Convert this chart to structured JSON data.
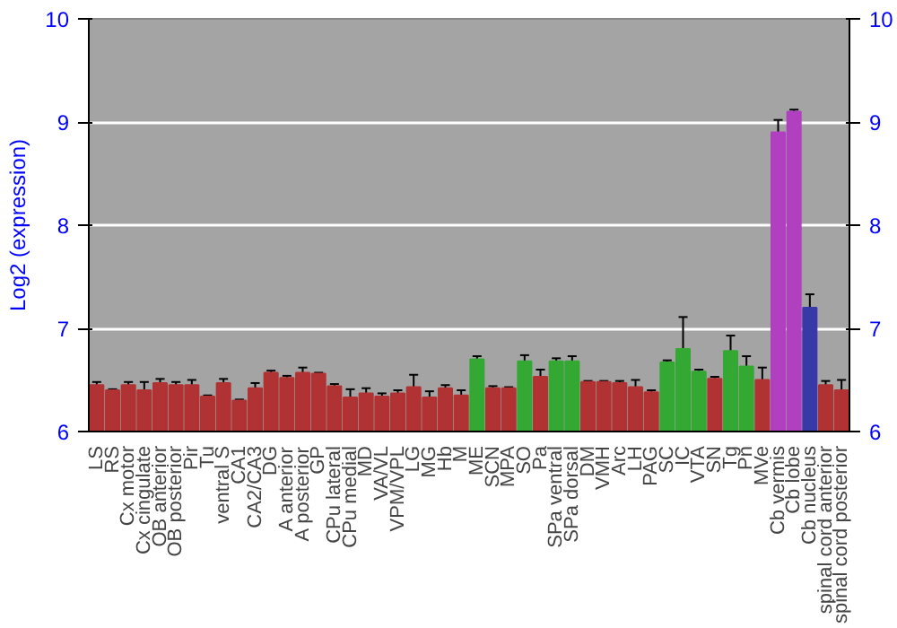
{
  "chart_data": {
    "type": "bar",
    "ylabel": "Log2 (expression)",
    "categories": [
      "LS",
      "RS",
      "Cx motor",
      "Cx cingulate",
      "OB anterior",
      "OB posterior",
      "Pir",
      "Tu",
      "ventral S",
      "CA1",
      "CA2/CA3",
      "DG",
      "A anterior",
      "A posterior",
      "GP",
      "CPu lateral",
      "CPu medial",
      "MD",
      "VA/VL",
      "VPM/VPL",
      "LG",
      "MG",
      "Hb",
      "M",
      "ME",
      "SCN",
      "MPA",
      "SO",
      "Pa",
      "SPa ventral",
      "SPa dorsal",
      "DM",
      "VMH",
      "Arc",
      "LH",
      "PAG",
      "SC",
      "IC",
      "VTA",
      "SN",
      "Tg",
      "Pn",
      "MVe",
      "Cb vermis",
      "Cb lobe",
      "Cb nucleus",
      "spinal cord anterior",
      "spinal cord posterior"
    ],
    "values": [
      6.45,
      6.4,
      6.45,
      6.4,
      6.47,
      6.45,
      6.45,
      6.34,
      6.47,
      6.3,
      6.42,
      6.57,
      6.52,
      6.57,
      6.56,
      6.44,
      6.33,
      6.37,
      6.34,
      6.37,
      6.43,
      6.33,
      6.42,
      6.35,
      6.7,
      6.42,
      6.42,
      6.68,
      6.53,
      6.68,
      6.68,
      6.48,
      6.48,
      6.47,
      6.43,
      6.38,
      6.67,
      6.8,
      6.58,
      6.51,
      6.78,
      6.63,
      6.5,
      8.9,
      9.1,
      7.2,
      6.45,
      6.4
    ],
    "errors": [
      0.03,
      0.01,
      0.03,
      0.08,
      0.04,
      0.03,
      0.05,
      0.01,
      0.04,
      0.01,
      0.05,
      0.02,
      0.02,
      0.05,
      0.01,
      0.02,
      0.08,
      0.05,
      0.03,
      0.03,
      0.12,
      0.06,
      0.03,
      0.05,
      0.03,
      0.02,
      0.01,
      0.06,
      0.07,
      0.03,
      0.05,
      0.01,
      0.01,
      0.02,
      0.07,
      0.02,
      0.02,
      0.31,
      0.02,
      0.02,
      0.15,
      0.1,
      0.12,
      0.12,
      0.02,
      0.13,
      0.04,
      0.1
    ],
    "colors": [
      "#b03232",
      "#b03232",
      "#b03232",
      "#b03232",
      "#b03232",
      "#b03232",
      "#b03232",
      "#b03232",
      "#b03232",
      "#b03232",
      "#b03232",
      "#b03232",
      "#b03232",
      "#b03232",
      "#b03232",
      "#b03232",
      "#b03232",
      "#b03232",
      "#b03232",
      "#b03232",
      "#b03232",
      "#b03232",
      "#b03232",
      "#b03232",
      "#33a833",
      "#b03232",
      "#b03232",
      "#33a833",
      "#b03232",
      "#33a833",
      "#33a833",
      "#b03232",
      "#b03232",
      "#b03232",
      "#b03232",
      "#b03232",
      "#33a833",
      "#33a833",
      "#33a833",
      "#b03232",
      "#33a833",
      "#33a833",
      "#b03232",
      "#b040c0",
      "#b040c0",
      "#3838a8",
      "#b03232",
      "#b03232"
    ],
    "ylim": [
      6,
      10
    ],
    "yticks": [
      6,
      7,
      8,
      9,
      10
    ],
    "y2lim": [
      6,
      10
    ],
    "y2ticks": [
      6,
      7,
      8,
      9,
      10
    ],
    "grid": "y"
  }
}
